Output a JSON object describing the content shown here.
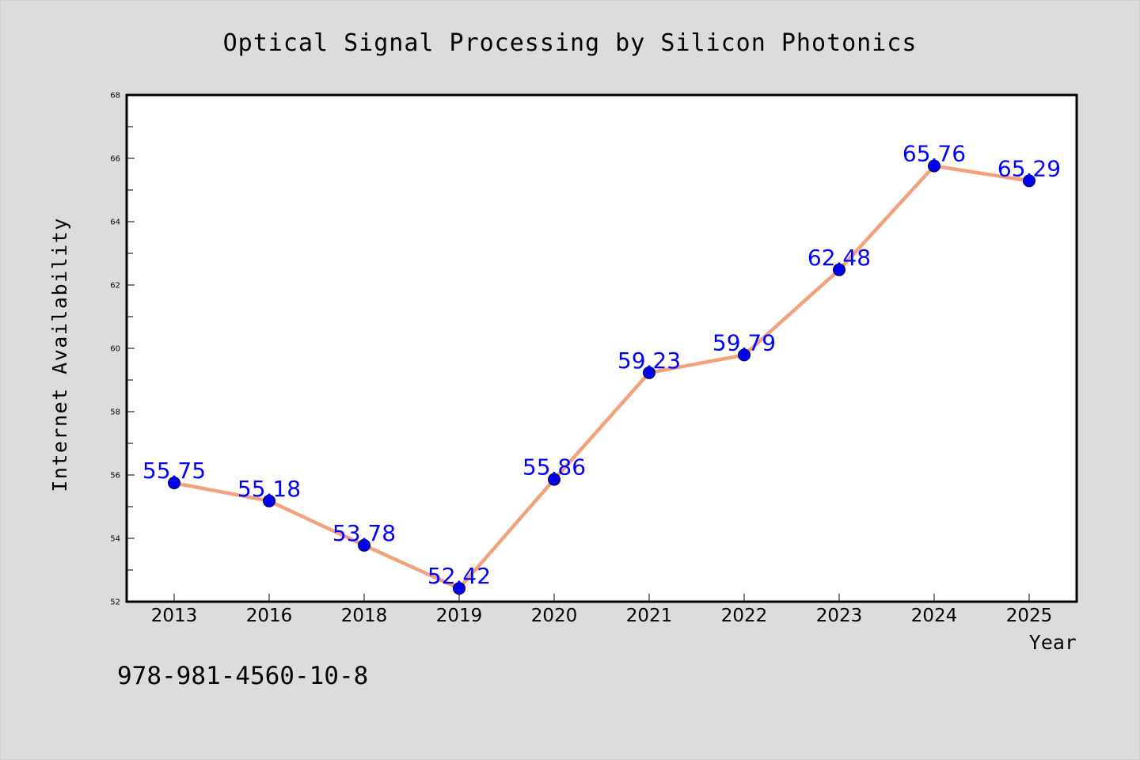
{
  "chart_data": {
    "type": "line",
    "title": "Optical Signal Processing by Silicon Photonics",
    "xlabel": "Year",
    "ylabel": "Internet Availability",
    "categories": [
      "2013",
      "2016",
      "2018",
      "2019",
      "2020",
      "2021",
      "2022",
      "2023",
      "2024",
      "2025"
    ],
    "series": [
      {
        "values": [
          55.75,
          55.18,
          53.78,
          52.42,
          55.86,
          59.23,
          59.79,
          62.48,
          65.76,
          65.29
        ],
        "data_labels": [
          "55.75",
          "55.18",
          "53.78",
          "52.42",
          "55.86",
          "59.23",
          "59.79",
          "62.48",
          "65.76",
          "65.29"
        ]
      }
    ],
    "ylim": [
      52,
      68
    ],
    "yticks": [
      "52",
      "54",
      "56",
      "58",
      "60",
      "62",
      "64",
      "66",
      "68"
    ],
    "grid": false,
    "line_color": "#f4a07a",
    "marker_color": "#0000ee",
    "label_color": "#0000ff",
    "background_color": "#dcdcdc",
    "plot_background": "#ffffff"
  },
  "footnote": "978-981-4560-10-8"
}
